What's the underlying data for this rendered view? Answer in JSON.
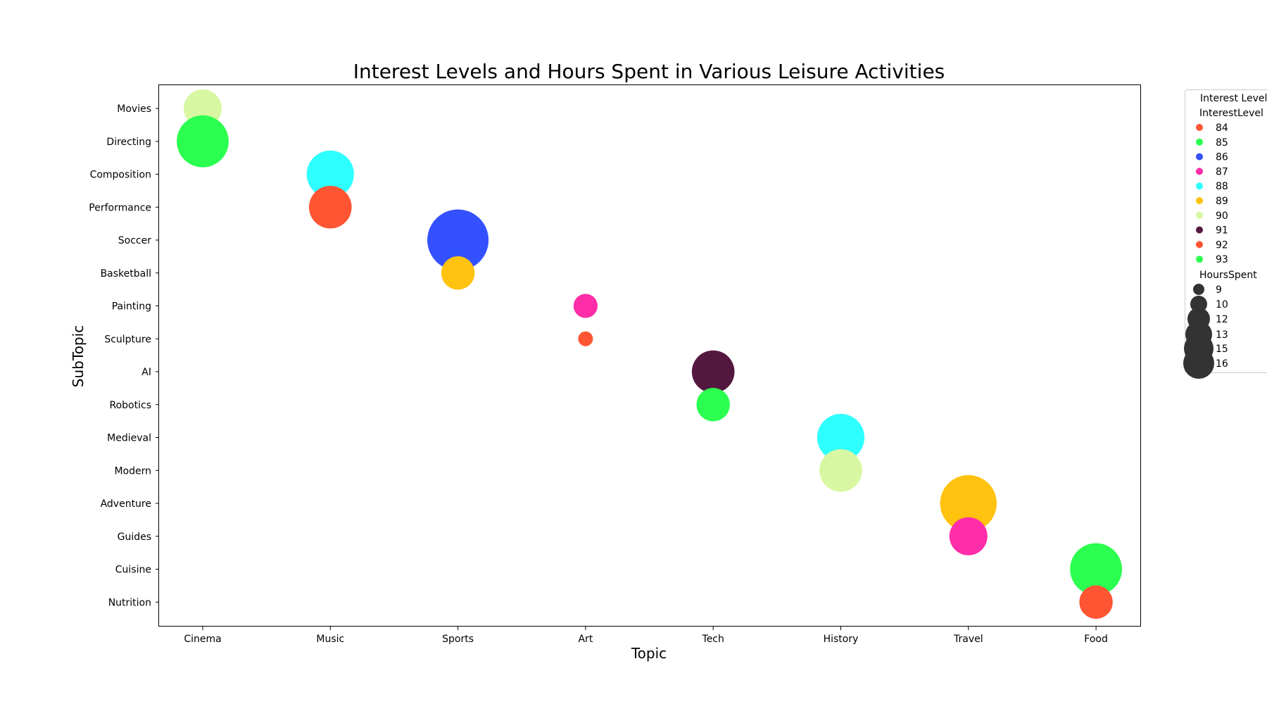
{
  "chart_data": {
    "type": "scatter",
    "title": "Interest Levels and Hours Spent in Various Leisure Activities",
    "xlabel": "Topic",
    "ylabel": "SubTopic",
    "x_categories": [
      "Cinema",
      "Music",
      "Sports",
      "Art",
      "Tech",
      "History",
      "Travel",
      "Food"
    ],
    "y_categories": [
      "Movies",
      "Directing",
      "Composition",
      "Performance",
      "Soccer",
      "Basketball",
      "Painting",
      "Sculpture",
      "AI",
      "Robotics",
      "Medieval",
      "Modern",
      "Adventure",
      "Guides",
      "Cuisine",
      "Nutrition"
    ],
    "points": [
      {
        "topic": "Cinema",
        "subtopic": "Movies",
        "interest": 90,
        "hours": 10
      },
      {
        "topic": "Cinema",
        "subtopic": "Directing",
        "interest": 93,
        "hours": 13
      },
      {
        "topic": "Music",
        "subtopic": "Composition",
        "interest": 88,
        "hours": 12
      },
      {
        "topic": "Music",
        "subtopic": "Performance",
        "interest": 92,
        "hours": 11
      },
      {
        "topic": "Sports",
        "subtopic": "Soccer",
        "interest": 86,
        "hours": 15
      },
      {
        "topic": "Sports",
        "subtopic": "Basketball",
        "interest": 89,
        "hours": 9
      },
      {
        "topic": "Art",
        "subtopic": "Painting",
        "interest": 87,
        "hours": 7
      },
      {
        "topic": "Art",
        "subtopic": "Sculpture",
        "interest": 84,
        "hours": 5
      },
      {
        "topic": "Tech",
        "subtopic": "AI",
        "interest": 91,
        "hours": 11
      },
      {
        "topic": "Tech",
        "subtopic": "Robotics",
        "interest": 85,
        "hours": 9
      },
      {
        "topic": "History",
        "subtopic": "Medieval",
        "interest": 88,
        "hours": 12
      },
      {
        "topic": "History",
        "subtopic": "Modern",
        "interest": 90,
        "hours": 11
      },
      {
        "topic": "Travel",
        "subtopic": "Adventure",
        "interest": 89,
        "hours": 14
      },
      {
        "topic": "Travel",
        "subtopic": "Guides",
        "interest": 87,
        "hours": 10
      },
      {
        "topic": "Food",
        "subtopic": "Cuisine",
        "interest": 85,
        "hours": 13
      },
      {
        "topic": "Food",
        "subtopic": "Nutrition",
        "interest": 92,
        "hours": 9
      }
    ],
    "colors": {
      "84": "#ff5533",
      "85": "#2bff4f",
      "86": "#3351ff",
      "87": "#ff2da8",
      "88": "#2effff",
      "89": "#ffc20e",
      "90": "#d8f7a2",
      "91": "#541840",
      "92": "#ff5533",
      "93": "#2bff4f"
    },
    "legend": {
      "title": "Interest Level",
      "placement": "outside-right",
      "hue_title": "InterestLevel",
      "hue_entries": [
        "84",
        "85",
        "86",
        "87",
        "88",
        "89",
        "90",
        "91",
        "92",
        "93"
      ],
      "size_title": "HoursSpent",
      "size_entries": [
        "9",
        "10",
        "12",
        "13",
        "15",
        "16"
      ],
      "size_color": "#333333"
    },
    "grid": false
  }
}
